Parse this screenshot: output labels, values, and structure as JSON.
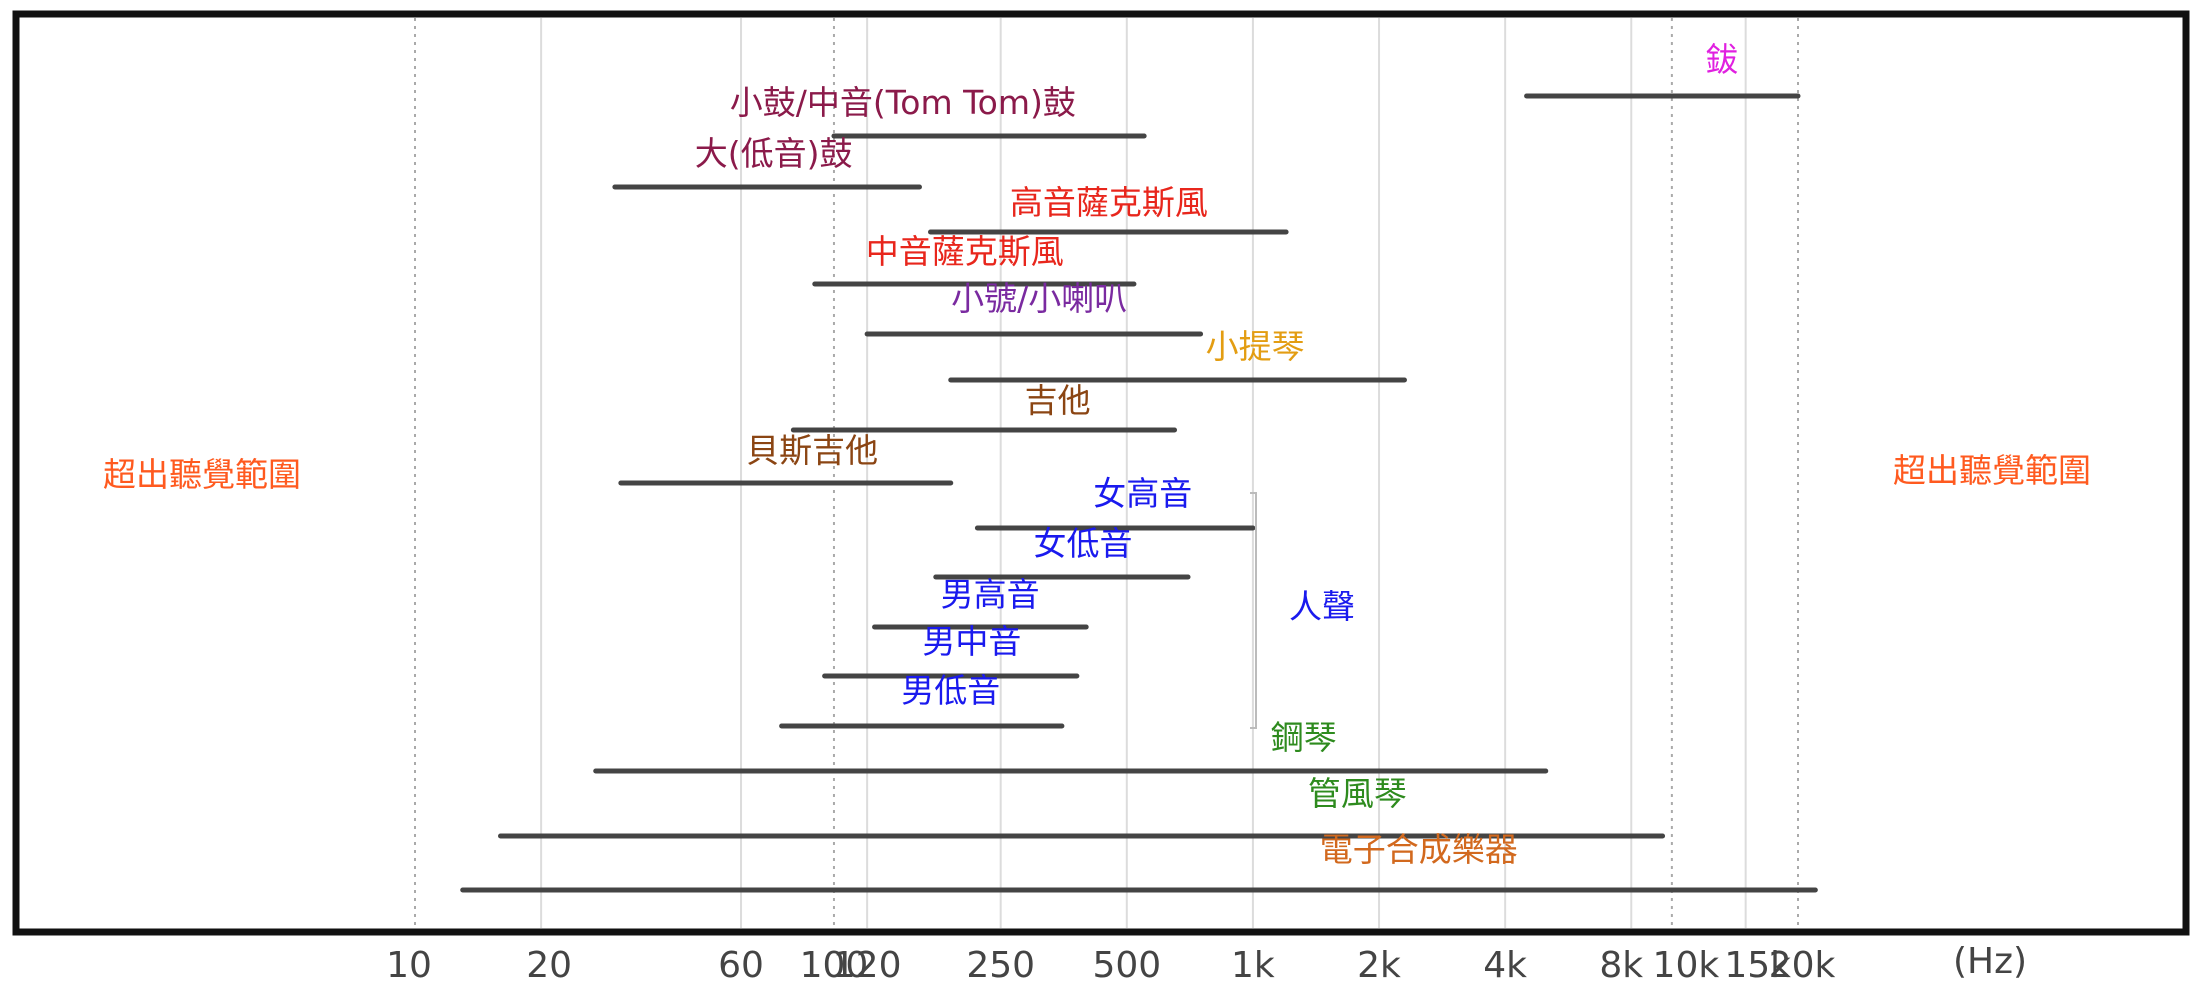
{
  "chart_data": {
    "type": "range-bar",
    "xlabel": "(Hz)",
    "x_scale": "log",
    "grid": true,
    "ticks": [
      {
        "value": 10,
        "label": "10",
        "line": "dotted"
      },
      {
        "value": 20,
        "label": "20",
        "line": "solid"
      },
      {
        "value": 60,
        "label": "60",
        "line": "solid"
      },
      {
        "value": 100,
        "label": "100",
        "line": "dotted"
      },
      {
        "value": 120,
        "label": "120",
        "line": "solid"
      },
      {
        "value": 250,
        "label": "250",
        "line": "solid"
      },
      {
        "value": 500,
        "label": "500",
        "line": "solid"
      },
      {
        "value": 1000,
        "label": "1k",
        "line": "solid"
      },
      {
        "value": 2000,
        "label": "2k",
        "line": "solid"
      },
      {
        "value": 4000,
        "label": "4k",
        "line": "solid"
      },
      {
        "value": 8000,
        "label": "8k",
        "line": "solid"
      },
      {
        "value": 10000,
        "label": "10k",
        "line": "dotted"
      },
      {
        "value": 15000,
        "label": "15k",
        "line": "solid"
      },
      {
        "value": 20000,
        "label": "20k",
        "line": "dotted"
      }
    ],
    "side_labels": {
      "left": "超出聽覺範圍",
      "right": "超出聽覺範圍"
    },
    "group_label": {
      "text": "人聲",
      "color": "#1a1aee"
    },
    "ranges": [
      {
        "name": "鈸",
        "low": 4500,
        "high": 20000,
        "color": "#e020e0"
      },
      {
        "name": "小鼓/中音(Tom Tom)鼓",
        "low": 100,
        "high": 550,
        "color": "#8b1a4a"
      },
      {
        "name": "大(低音)鼓",
        "low": 30,
        "high": 160,
        "color": "#8b1a4a"
      },
      {
        "name": "高音薩克斯風",
        "low": 170,
        "high": 1200,
        "color": "#e8261c"
      },
      {
        "name": "中音薩克斯風",
        "low": 90,
        "high": 520,
        "color": "#e8261c"
      },
      {
        "name": "小號/小喇叭",
        "low": 120,
        "high": 750,
        "color": "#7a2aa0"
      },
      {
        "name": "小提琴",
        "low": 190,
        "high": 2300,
        "color": "#e39d12"
      },
      {
        "name": "吉他",
        "low": 80,
        "high": 650,
        "color": "#8b4513"
      },
      {
        "name": "貝斯吉他",
        "low": 31,
        "high": 190,
        "color": "#8b4513"
      },
      {
        "name": "女高音",
        "low": 220,
        "high": 1000,
        "color": "#1a1aee"
      },
      {
        "name": "女低音",
        "low": 175,
        "high": 700,
        "color": "#1a1aee"
      },
      {
        "name": "男高音",
        "low": 125,
        "high": 400,
        "color": "#1a1aee"
      },
      {
        "name": "男中音",
        "low": 95,
        "high": 380,
        "color": "#1a1aee"
      },
      {
        "name": "男低音",
        "low": 75,
        "high": 350,
        "color": "#1a1aee"
      },
      {
        "name": "鋼琴",
        "low": 27,
        "high": 5000,
        "color": "#2e8b1e"
      },
      {
        "name": "管風琴",
        "low": 16,
        "high": 9500,
        "color": "#2e8b1e"
      },
      {
        "name": "電子合成樂器",
        "low": 13,
        "high": 22000,
        "color": "#d2691e"
      }
    ]
  }
}
